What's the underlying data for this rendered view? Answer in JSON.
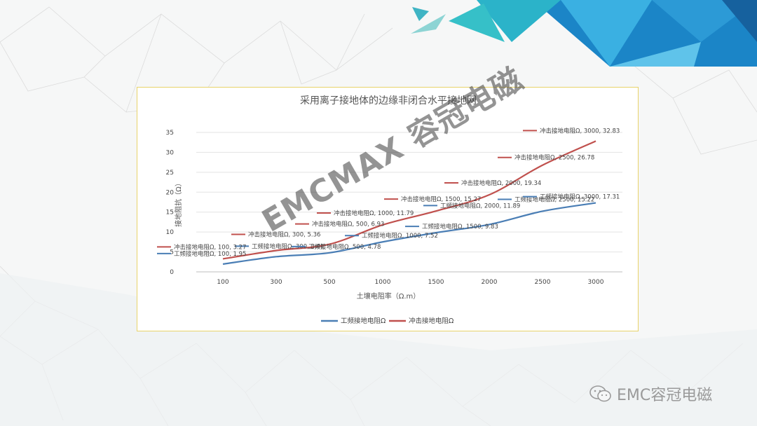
{
  "colors": {
    "series1": "#4a7eb5",
    "series2": "#c0504d",
    "frame": "#e8d36a",
    "accent": "#1e9fd8"
  },
  "watermark": "EMCMAX 容冠电磁",
  "brand": {
    "icon": "wechat-icon",
    "text": "EMC容冠电磁"
  },
  "chart_data": {
    "type": "line",
    "title": "采用离子接地体的边缘非闭合水平接地网",
    "xlabel": "土壤电阻率（Ω.m）",
    "ylabel": "接地阻抗（Ω）",
    "categories": [
      "100",
      "300",
      "500",
      "1000",
      "1500",
      "2000",
      "2500",
      "3000"
    ],
    "ylim": [
      0,
      35
    ],
    "yticks": [
      "0",
      "5",
      "10",
      "15",
      "20",
      "25",
      "30",
      "35"
    ],
    "grid": true,
    "legend": "bottom",
    "series": [
      {
        "name": "工频接地电阻Ω",
        "values": [
          1.95,
          3.81,
          4.78,
          7.52,
          9.83,
          11.89,
          15.22,
          17.31
        ],
        "labels": [
          "工频接地电阻Ω, 100, 1.95",
          "工频接地电阻Ω, 300, 3.81",
          "工频接地电阻Ω, 500, 4.78",
          "工频接地电阻Ω, 1000, 7.52",
          "工频接地电阻Ω, 1500, 9.83",
          "工频接地电阻Ω, 2000, 11.89",
          "工频接地电阻Ω, 2500, 15.22",
          "工频接地电阻Ω, 3000, 17.31"
        ]
      },
      {
        "name": "冲击接地电阻Ω",
        "values": [
          3.27,
          5.36,
          6.93,
          11.79,
          15.27,
          19.34,
          26.78,
          32.83
        ],
        "labels": [
          "冲击接地电阻Ω, 100, 3.27",
          "冲击接地电阻Ω, 300, 5.36",
          "冲击接地电阻Ω, 500, 6.93",
          "冲击接地电阻Ω, 1000, 11.79",
          "冲击接地电阻Ω, 1500, 15.27",
          "冲击接地电阻Ω, 2000, 19.34",
          "冲击接地电阻Ω, 2500, 26.78",
          "冲击接地电阻Ω, 3000, 32.83"
        ]
      }
    ]
  }
}
